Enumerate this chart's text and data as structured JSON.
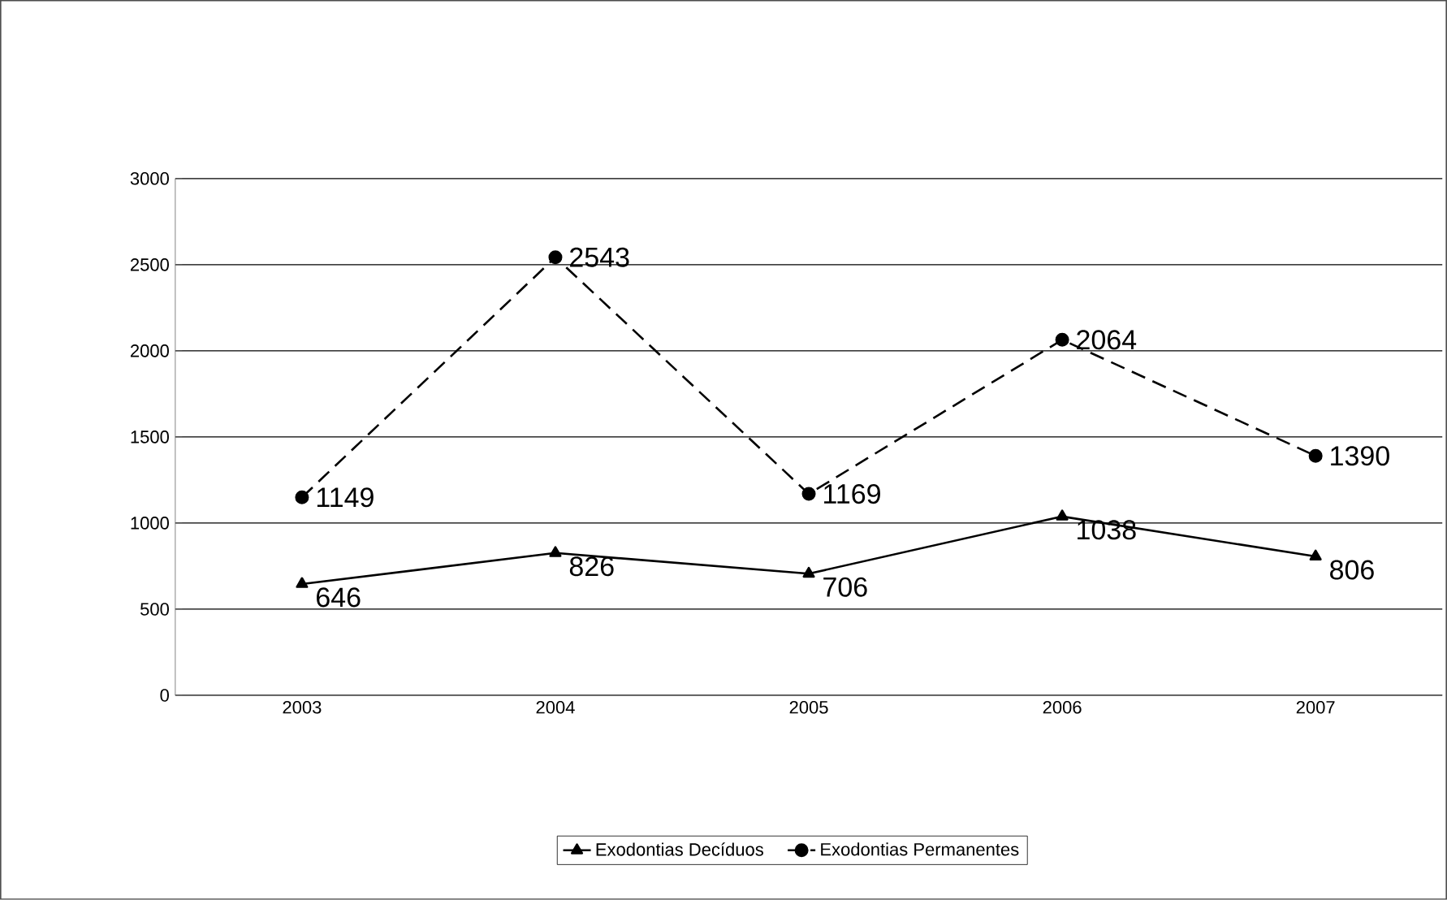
{
  "chart_data": {
    "type": "line",
    "categories": [
      "2003",
      "2004",
      "2005",
      "2006",
      "2007"
    ],
    "series": [
      {
        "name": "Exodontias Decíduos",
        "color": "#000000",
        "marker": "triangle",
        "line_style": "solid",
        "values": [
          646,
          826,
          706,
          1038,
          806
        ]
      },
      {
        "name": "Exodontias Permanentes",
        "color": "#000000",
        "marker": "circle",
        "line_style": "dashed",
        "values": [
          1149,
          2543,
          1169,
          2064,
          1390
        ]
      }
    ],
    "ylim": [
      0,
      3000
    ],
    "yticks": [
      0,
      500,
      1000,
      1500,
      2000,
      2500,
      3000
    ],
    "grid": "y",
    "legend": "bottom",
    "data_labels": true
  }
}
